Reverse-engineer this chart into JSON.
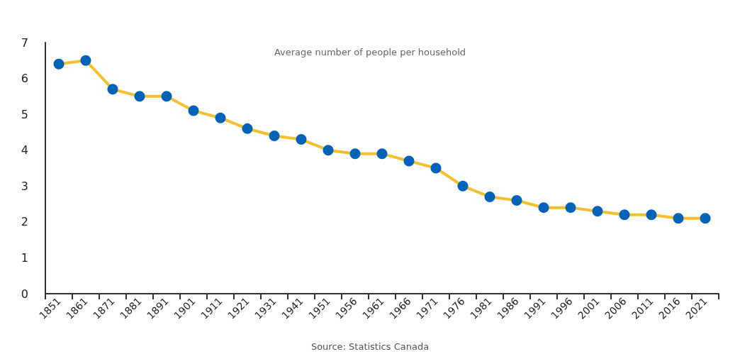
{
  "chart_data": {
    "type": "line",
    "title": "Average number of people per household",
    "annotations": [
      "Source: Statistics Canada"
    ],
    "categories": [
      "1851",
      "1861",
      "1871",
      "1881",
      "1891",
      "1901",
      "1911",
      "1921",
      "1931",
      "1941",
      "1951",
      "1956",
      "1961",
      "1966",
      "1971",
      "1976",
      "1981",
      "1986",
      "1991",
      "1996",
      "2001",
      "2006",
      "2011",
      "2016",
      "2021"
    ],
    "series": [
      {
        "color": "#f5c02e",
        "colors": [
          "#0063b8",
          "#0063b8",
          "#0063b8",
          "#0063b8",
          "#0063b8",
          "#0063b8",
          "#0063b8",
          "#0063b8",
          "#0063b8",
          "#0063b8",
          "#0063b8",
          "#0063b8",
          "#0063b8",
          "#0063b8",
          "#0063b8",
          "#0063b8",
          "#0063b8",
          "#0063b8",
          "#0063b8",
          "#0063b8",
          "#0063b8",
          "#0063b8",
          "#0063b8",
          "#0063b8",
          "#0063b8"
        ],
        "values": [
          6.4,
          6.5,
          5.7,
          5.5,
          5.5,
          5.1,
          4.9,
          4.6,
          4.4,
          4.3,
          4.0,
          3.9,
          3.9,
          3.7,
          3.5,
          3.0,
          2.7,
          2.6,
          2.4,
          2.4,
          2.3,
          2.2,
          2.2,
          2.1,
          2.1
        ]
      }
    ],
    "ylim": [
      0,
      7
    ],
    "yticks": [
      0,
      1,
      2,
      3,
      4,
      5,
      6,
      7
    ],
    "grid": false,
    "marker": "circle",
    "line_style": "solid"
  }
}
